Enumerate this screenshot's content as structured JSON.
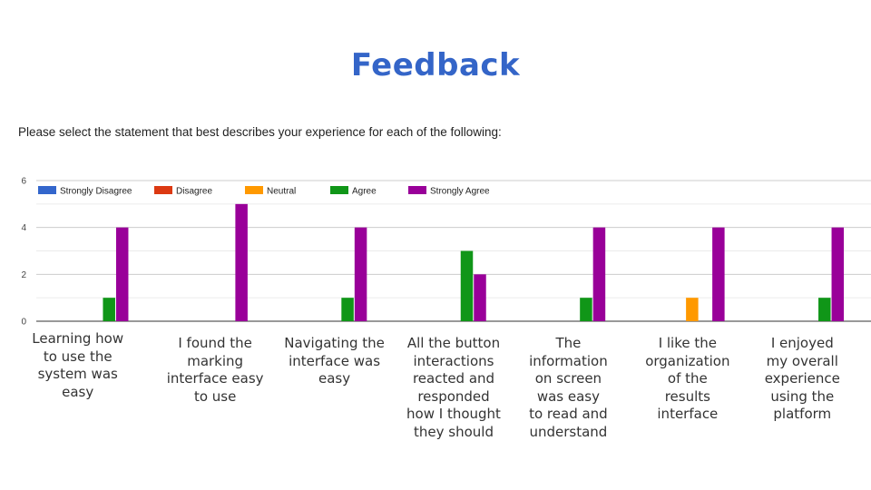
{
  "title": "Feedback",
  "question": "Please select the statement that best describes your experience for each of the following:",
  "chart_data": {
    "type": "bar",
    "categories": [
      "Learning how\nto use the\nsystem was\neasy",
      "I found the\nmarking\ninterface easy\nto use",
      "Navigating the\ninterface was\neasy",
      "All the button\ninteractions\nreacted and\nresponded\nhow I thought\nthey should",
      "The\ninformation\non screen\nwas easy\nto read and\nunderstand",
      "I like the\norganization\nof the\nresults\ninterface",
      "I enjoyed\nmy overall\nexperience\nusing the\nplatform"
    ],
    "series": [
      {
        "name": "Strongly Disagree",
        "color": "#3366cc",
        "values": [
          0,
          0,
          0,
          0,
          0,
          0,
          0
        ]
      },
      {
        "name": "Disagree",
        "color": "#dc3912",
        "values": [
          0,
          0,
          0,
          0,
          0,
          0,
          0
        ]
      },
      {
        "name": "Neutral",
        "color": "#ff9900",
        "values": [
          0,
          0,
          0,
          0,
          0,
          1,
          0
        ]
      },
      {
        "name": "Agree",
        "color": "#109618",
        "values": [
          1,
          0,
          1,
          3,
          1,
          0,
          1
        ]
      },
      {
        "name": "Strongly Agree",
        "color": "#990099",
        "values": [
          4,
          5,
          4,
          2,
          4,
          4,
          4
        ]
      }
    ],
    "yticks": [
      0,
      2,
      4,
      6
    ],
    "ylim": [
      0,
      6
    ],
    "grid": true,
    "legend": "top-left"
  }
}
